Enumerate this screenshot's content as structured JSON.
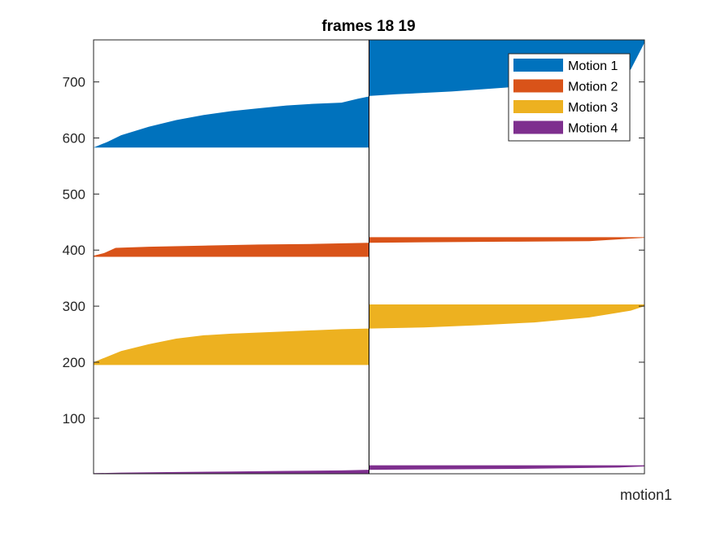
{
  "chart_data": {
    "type": "area",
    "title": "frames 18 19",
    "xlabel": "motion1",
    "ylabel": "",
    "ylim": [
      1,
      775
    ],
    "yticks": [
      100,
      200,
      300,
      400,
      500,
      600,
      700
    ],
    "xlim": [
      0,
      2
    ],
    "divider_at": 1,
    "grid": false,
    "legend_position": "top-right",
    "series": [
      {
        "name": "Motion 1",
        "color": "#0072BD",
        "frames": [
          {
            "x": [
              0,
              0.05,
              0.1,
              0.2,
              0.3,
              0.4,
              0.5,
              0.6,
              0.7,
              0.8,
              0.9,
              0.96,
              1.0
            ],
            "upper": [
              583,
              593,
              605,
              620,
              632,
              641,
              648,
              653,
              658,
              661,
              663,
              670,
              674
            ],
            "lower": 583
          },
          {
            "x": [
              1.0,
              1.1,
              1.3,
              1.5,
              1.7,
              1.85,
              1.95,
              2.0
            ],
            "upper": [
              775,
              775,
              775,
              775,
              775,
              775,
              775,
              775
            ],
            "lower": [
              675,
              678,
              683,
              690,
              700,
              710,
              722,
              770
            ]
          }
        ]
      },
      {
        "name": "Motion 2",
        "color": "#D95319",
        "frames": [
          {
            "x": [
              0,
              0.04,
              0.08,
              0.2,
              0.4,
              0.6,
              0.8,
              1.0
            ],
            "upper": [
              390,
              395,
              404,
              406,
              408,
              410,
              411,
              413
            ],
            "lower": 388
          },
          {
            "x": [
              1.0,
              1.2,
              1.5,
              1.8,
              2.0
            ],
            "upper": [
              423,
              423,
              423,
              423,
              423
            ],
            "lower": [
              413,
              414,
              415,
              416,
              422
            ]
          }
        ]
      },
      {
        "name": "Motion 3",
        "color": "#EDB120",
        "frames": [
          {
            "x": [
              0,
              0.05,
              0.1,
              0.2,
              0.3,
              0.4,
              0.5,
              0.6,
              0.7,
              0.8,
              0.9,
              1.0
            ],
            "upper": [
              200,
              210,
              220,
              232,
              242,
              248,
              251,
              253,
              255,
              257,
              259,
              260
            ],
            "lower": 195
          },
          {
            "x": [
              1.0,
              1.2,
              1.4,
              1.6,
              1.8,
              1.95,
              2.0
            ],
            "upper": [
              303,
              303,
              303,
              303,
              303,
              303,
              303
            ],
            "lower": [
              260,
              262,
              266,
              271,
              280,
              292,
              300
            ]
          }
        ]
      },
      {
        "name": "Motion 4",
        "color": "#7E2F8E",
        "frames": [
          {
            "x": [
              0,
              0.1,
              0.3,
              0.5,
              0.7,
              0.9,
              1.0
            ],
            "upper": [
              2,
              3,
              4,
              5,
              6,
              7,
              8
            ],
            "lower": 1
          },
          {
            "x": [
              1.0,
              1.3,
              1.6,
              1.9,
              2.0
            ],
            "upper": [
              16,
              16,
              16,
              16,
              16
            ],
            "lower": [
              8,
              9,
              10,
              12,
              14
            ]
          }
        ]
      }
    ]
  }
}
